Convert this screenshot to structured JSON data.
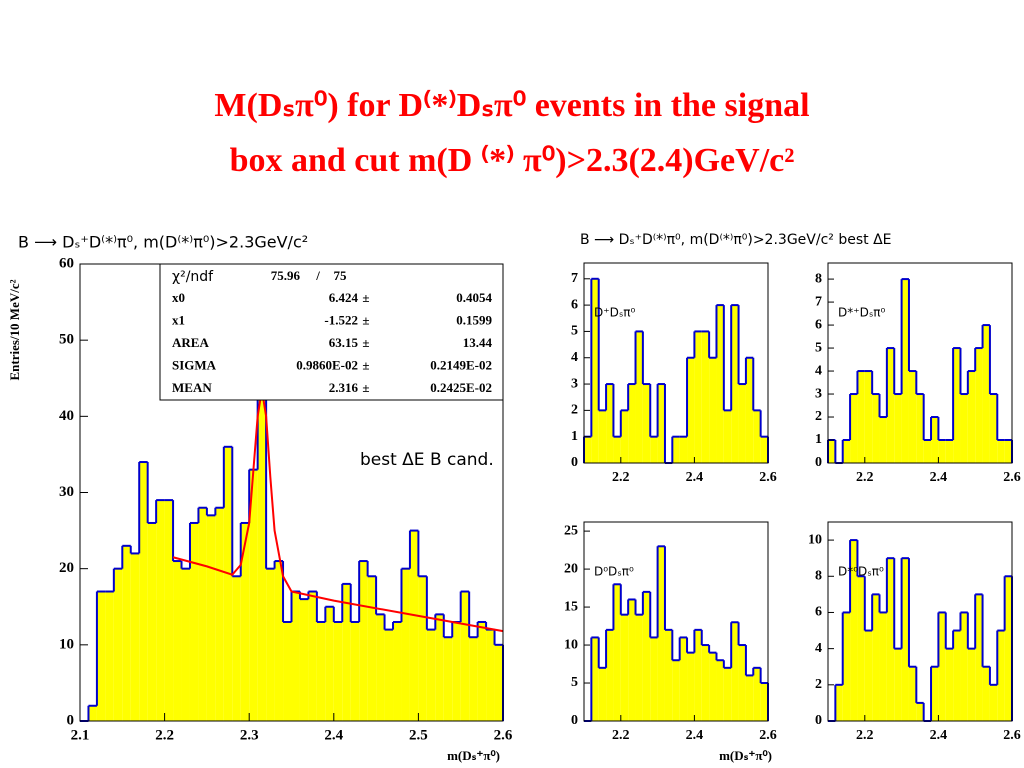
{
  "slide": {
    "title_lines": [
      "M(Dₛπ⁰) for D⁽*⁾Dₛπ⁰ events in the signal",
      "box and cut m(D ⁽*⁾ π⁰)>2.3(2.4)GeV/c²"
    ]
  },
  "panel_title": "B ⟶ Dₛ⁺D⁽*⁾π⁰, m(D⁽*⁾π⁰)>2.3GeV/c² best ΔE",
  "chart_data": [
    {
      "type": "histogram",
      "title": "B ⟶ Dₛ⁺D⁽*⁾π⁰, m(D⁽*⁾π⁰)>2.3GeV/c²",
      "y_label": "Entries/10 MeV/c²",
      "x_label": "m(Dₛ⁺π⁰)",
      "annotation": "best ΔE B cand.",
      "bins": [
        2.1,
        2.11,
        2.12,
        2.13,
        2.14,
        2.15,
        2.16,
        2.17,
        2.18,
        2.19,
        2.2,
        2.21,
        2.22,
        2.23,
        2.24,
        2.25,
        2.26,
        2.27,
        2.28,
        2.29,
        2.3,
        2.31,
        2.32,
        2.33,
        2.34,
        2.35,
        2.36,
        2.37,
        2.38,
        2.39,
        2.4,
        2.41,
        2.42,
        2.43,
        2.44,
        2.45,
        2.46,
        2.47,
        2.48,
        2.49,
        2.5,
        2.51,
        2.52,
        2.53,
        2.54,
        2.55,
        2.56,
        2.57,
        2.58,
        2.59,
        2.6
      ],
      "values": [
        0,
        2,
        17,
        17,
        20,
        23,
        22,
        34,
        26,
        29,
        29,
        21,
        20,
        26,
        28,
        27,
        28,
        36,
        19,
        26,
        33,
        44,
        20,
        21,
        13,
        17,
        16,
        17,
        13,
        15,
        13,
        18,
        13,
        21,
        19,
        14,
        12,
        13,
        20,
        25,
        19,
        12,
        14,
        11,
        13,
        17,
        11,
        13,
        12,
        10
      ],
      "fill": "#ffff00",
      "edge": "#0000cc",
      "fit": {
        "color": "#ff0000",
        "x": [
          2.21,
          2.25,
          2.28,
          2.29,
          2.3,
          2.305,
          2.31,
          2.315,
          2.32,
          2.325,
          2.33,
          2.34,
          2.35,
          2.4,
          2.5,
          2.6
        ],
        "y": [
          21.5,
          20.3,
          19.2,
          20.5,
          26,
          33,
          40,
          43.5,
          40,
          32,
          25,
          19,
          17,
          15.8,
          13.8,
          11.8
        ]
      },
      "stats": {
        "header": [
          "χ²/ndf",
          "75.96",
          "/",
          "75"
        ],
        "rows": [
          [
            "x0",
            "6.424",
            "±",
            "0.4054"
          ],
          [
            "x1",
            "-1.522",
            "±",
            "0.1599"
          ],
          [
            "AREA",
            "63.15",
            "±",
            "13.44"
          ],
          [
            "SIGMA",
            "0.9860E-02",
            "±",
            "0.2149E-02"
          ],
          [
            "MEAN",
            "2.316",
            "±",
            "0.2425E-02"
          ]
        ]
      },
      "xlim": [
        2.1,
        2.6
      ],
      "ylim": [
        0,
        60
      ],
      "xticks": [
        2.1,
        2.2,
        2.3,
        2.4,
        2.5,
        2.6
      ],
      "yticks": [
        0,
        10,
        20,
        30,
        40,
        50,
        60
      ]
    },
    {
      "type": "histogram",
      "title": "D⁺Dₛπ⁰",
      "bins": [
        2.1,
        2.12,
        2.14,
        2.16,
        2.18,
        2.2,
        2.22,
        2.24,
        2.26,
        2.28,
        2.3,
        2.32,
        2.34,
        2.36,
        2.38,
        2.4,
        2.42,
        2.44,
        2.46,
        2.48,
        2.5,
        2.52,
        2.54,
        2.56,
        2.58,
        2.6
      ],
      "values": [
        1,
        7,
        2,
        3,
        1,
        2,
        3,
        5,
        3,
        1,
        3,
        0,
        1,
        1,
        4,
        5,
        5,
        4,
        6,
        2,
        6,
        3,
        4,
        2,
        1
      ],
      "fill": "#ffff00",
      "edge": "#0000cc",
      "xlim": [
        2.1,
        2.6
      ],
      "ylim": [
        0,
        7.6
      ],
      "xticks": [
        2.2,
        2.4,
        2.6
      ],
      "yticks": [
        0,
        1,
        2,
        3,
        4,
        5,
        6,
        7
      ]
    },
    {
      "type": "histogram",
      "title": "D*⁺Dₛπ⁰",
      "bins": [
        2.1,
        2.12,
        2.14,
        2.16,
        2.18,
        2.2,
        2.22,
        2.24,
        2.26,
        2.28,
        2.3,
        2.32,
        2.34,
        2.36,
        2.38,
        2.4,
        2.42,
        2.44,
        2.46,
        2.48,
        2.5,
        2.52,
        2.54,
        2.56,
        2.58,
        2.6
      ],
      "values": [
        1,
        0,
        1,
        3,
        4,
        4,
        3,
        2,
        5,
        3,
        8,
        4,
        3,
        1,
        2,
        1,
        1,
        5,
        3,
        4,
        5,
        6,
        3,
        1,
        1
      ],
      "fill": "#ffff00",
      "edge": "#0000cc",
      "xlim": [
        2.1,
        2.6
      ],
      "ylim": [
        0,
        8.7
      ],
      "xticks": [
        2.2,
        2.4,
        2.6
      ],
      "yticks": [
        0,
        1,
        2,
        3,
        4,
        5,
        6,
        7,
        8
      ]
    },
    {
      "type": "histogram",
      "title": "D⁰Dₛπ⁰",
      "x_label": "m(Dₛ⁺π⁰)",
      "bins": [
        2.1,
        2.12,
        2.14,
        2.16,
        2.18,
        2.2,
        2.22,
        2.24,
        2.26,
        2.28,
        2.3,
        2.32,
        2.34,
        2.36,
        2.38,
        2.4,
        2.42,
        2.44,
        2.46,
        2.48,
        2.5,
        2.52,
        2.54,
        2.56,
        2.58,
        2.6
      ],
      "values": [
        0,
        11,
        7,
        12,
        18,
        14,
        16,
        14,
        17,
        11,
        23,
        12,
        8,
        11,
        9,
        12,
        10,
        9,
        8,
        7,
        13,
        10,
        6,
        7,
        5
      ],
      "fill": "#ffff00",
      "edge": "#0000cc",
      "xlim": [
        2.1,
        2.6
      ],
      "ylim": [
        0,
        26.2
      ],
      "xticks": [
        2.2,
        2.4,
        2.6
      ],
      "yticks": [
        0,
        5,
        10,
        15,
        20,
        25
      ]
    },
    {
      "type": "histogram",
      "title": "D*⁰Dₛπ⁰",
      "bins": [
        2.1,
        2.12,
        2.14,
        2.16,
        2.18,
        2.2,
        2.22,
        2.24,
        2.26,
        2.28,
        2.3,
        2.32,
        2.34,
        2.36,
        2.38,
        2.4,
        2.42,
        2.44,
        2.46,
        2.48,
        2.5,
        2.52,
        2.54,
        2.56,
        2.58,
        2.6
      ],
      "values": [
        0,
        2,
        6,
        10,
        8,
        5,
        7,
        6,
        9,
        4,
        9,
        3,
        1,
        0,
        3,
        6,
        4,
        5,
        6,
        4,
        7,
        3,
        2,
        5,
        8
      ],
      "fill": "#ffff00",
      "edge": "#0000cc",
      "xlim": [
        2.1,
        2.6
      ],
      "ylim": [
        0,
        11
      ],
      "xticks": [
        2.2,
        2.4,
        2.6
      ],
      "yticks": [
        0,
        2,
        4,
        6,
        8,
        10
      ]
    }
  ]
}
